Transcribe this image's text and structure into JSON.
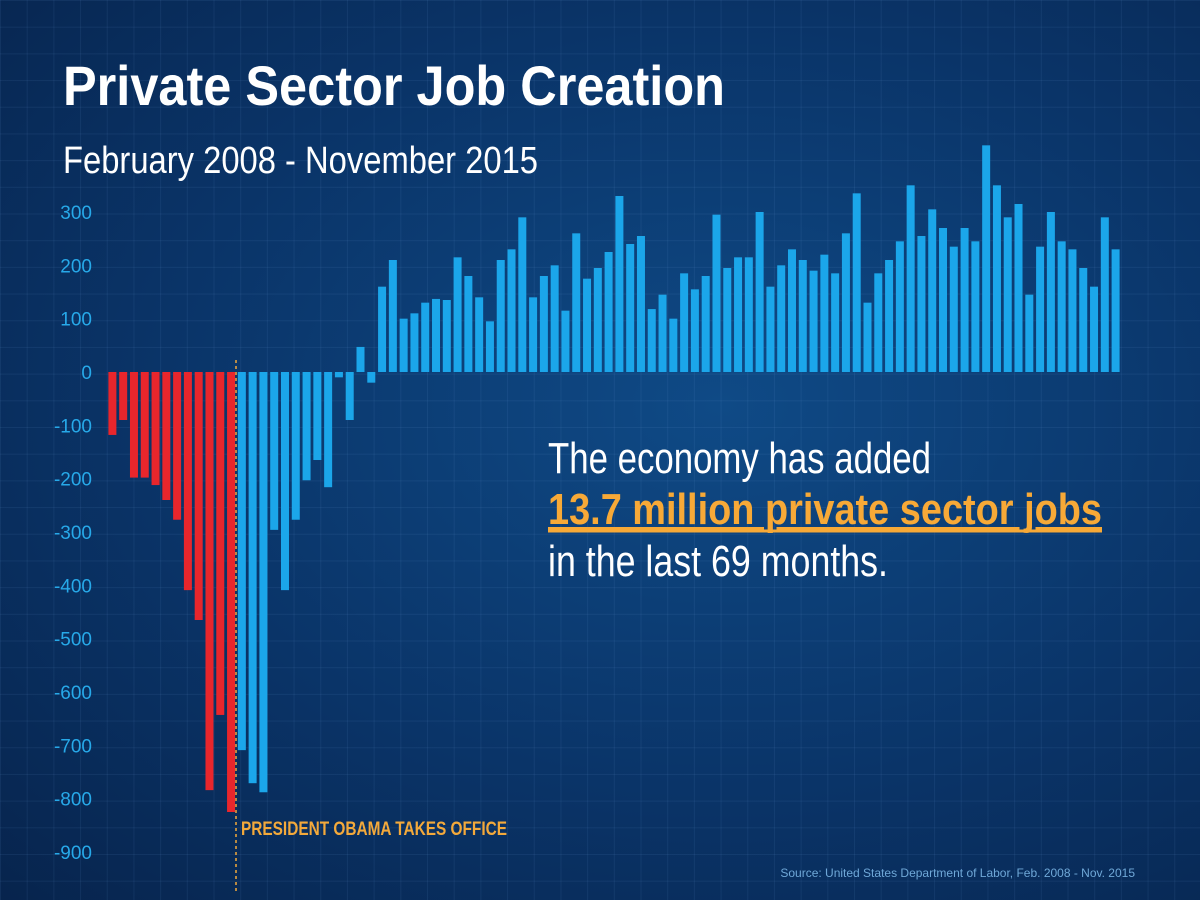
{
  "chart_data": {
    "type": "bar",
    "title": "Private Sector Job Creation",
    "subtitle": "February 2008 - November 2015",
    "annotation": {
      "lines": [
        "The economy has added",
        "13.7 million private sector jobs",
        "in the last 69 months."
      ]
    },
    "event_label": "PRESIDENT OBAMA TAKES OFFICE",
    "source": "Source: United States Department of Labor,  Feb. 2008 - Nov. 2015",
    "series": [
      {
        "color": "#e8262c",
        "values": [
          -118,
          -90,
          -198,
          -198,
          -212,
          -240,
          -277,
          -409,
          -465,
          -784,
          -643,
          -825,
          null,
          null,
          null,
          null,
          null,
          null,
          null,
          null,
          null,
          null,
          null,
          null,
          null,
          null,
          null,
          null,
          null,
          null,
          null,
          null,
          null,
          null,
          null,
          null,
          null,
          null,
          null,
          null,
          null,
          null,
          null,
          null,
          null,
          null,
          null,
          null,
          null,
          null,
          null,
          null,
          null,
          null,
          null,
          null,
          null,
          null,
          null,
          null,
          null,
          null,
          null,
          null,
          null,
          null,
          null,
          null,
          null,
          null,
          null,
          null,
          null,
          null,
          null,
          null,
          null,
          null,
          null,
          null,
          null,
          null,
          null,
          null,
          null,
          null,
          null,
          null,
          null,
          null,
          null,
          null,
          null,
          null
        ]
      },
      {
        "color": "#1ba6ea",
        "values": [
          null,
          null,
          null,
          null,
          null,
          null,
          null,
          null,
          null,
          null,
          null,
          null,
          -709,
          -771,
          -788,
          -296,
          -409,
          -277,
          -203,
          -165,
          -216,
          -10,
          -90,
          47,
          -20,
          160,
          210,
          100,
          110,
          130,
          137,
          135,
          215,
          180,
          140,
          95,
          210,
          230,
          290,
          140,
          180,
          200,
          115,
          260,
          175,
          195,
          225,
          330,
          240,
          255,
          118,
          145,
          100,
          185,
          155,
          180,
          295,
          195,
          215,
          215,
          300,
          160,
          200,
          230,
          210,
          190,
          220,
          185,
          260,
          335,
          130,
          185,
          210,
          245,
          350,
          255,
          305,
          270,
          235,
          270,
          245,
          425,
          350,
          290,
          315,
          145,
          235,
          300,
          245,
          230,
          195,
          160,
          290,
          230
        ]
      }
    ],
    "ylim": [
      -900,
      450
    ],
    "yticks": [
      300,
      200,
      100,
      0,
      -100,
      -200,
      -300,
      -400,
      -500,
      -600,
      -700,
      -800,
      -900
    ]
  }
}
